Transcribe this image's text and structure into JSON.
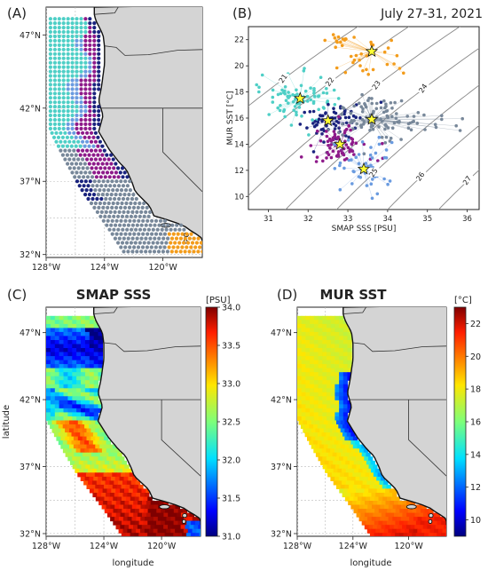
{
  "panels": {
    "a": {
      "letter": "(A)"
    },
    "b": {
      "letter": "(B)",
      "date": "July 27-31, 2021"
    },
    "c": {
      "letter": "(C)",
      "title": "SMAP SSS",
      "unit": "[PSU]"
    },
    "d": {
      "letter": "(D)",
      "title": "MUR SST",
      "unit": "[°C]"
    }
  },
  "map_axes": {
    "lat_ticks": [
      "47°N",
      "42°N",
      "37°N",
      "32°N"
    ],
    "lon_ticks": [
      "128°W",
      "124°W",
      "120°W"
    ],
    "xlabel": "longitude",
    "ylabel": "latitude"
  },
  "chart_data": [
    {
      "type": "scatter",
      "panel": "B",
      "xlabel": "SMAP SSS [PSU]",
      "ylabel": "MUR SST [°C]",
      "xlim": [
        30.5,
        36.3
      ],
      "ylim": [
        9,
        23
      ],
      "x_ticks": [
        "31",
        "32",
        "33",
        "34",
        "35",
        "36"
      ],
      "y_ticks": [
        "10",
        "12",
        "14",
        "16",
        "18",
        "20",
        "22"
      ],
      "isopycnal_labels": [
        "21",
        "22",
        "23",
        "24",
        "25",
        "26",
        "27"
      ],
      "cluster_centers": [
        {
          "color": "#f39c1b",
          "x": 33.6,
          "y": 21.1
        },
        {
          "color": "#4ecfc6",
          "x": 31.8,
          "y": 17.5
        },
        {
          "color": "#1a237e",
          "x": 32.5,
          "y": 15.8
        },
        {
          "color": "#78889a",
          "x": 33.6,
          "y": 15.9
        },
        {
          "color": "#8e1a8a",
          "x": 32.8,
          "y": 14.0
        },
        {
          "color": "#6a9be0",
          "x": 33.4,
          "y": 12.1
        }
      ]
    },
    {
      "type": "heatmap",
      "panel": "C",
      "colorbar_range": [
        31.0,
        34.0
      ],
      "colorbar_ticks": [
        "34.0",
        "33.5",
        "33.0",
        "32.5",
        "32.0",
        "31.5",
        "31.0"
      ]
    },
    {
      "type": "heatmap",
      "panel": "D",
      "colorbar_range": [
        9,
        23
      ],
      "colorbar_ticks": [
        "22",
        "20",
        "18",
        "16",
        "14",
        "12",
        "10"
      ]
    }
  ]
}
